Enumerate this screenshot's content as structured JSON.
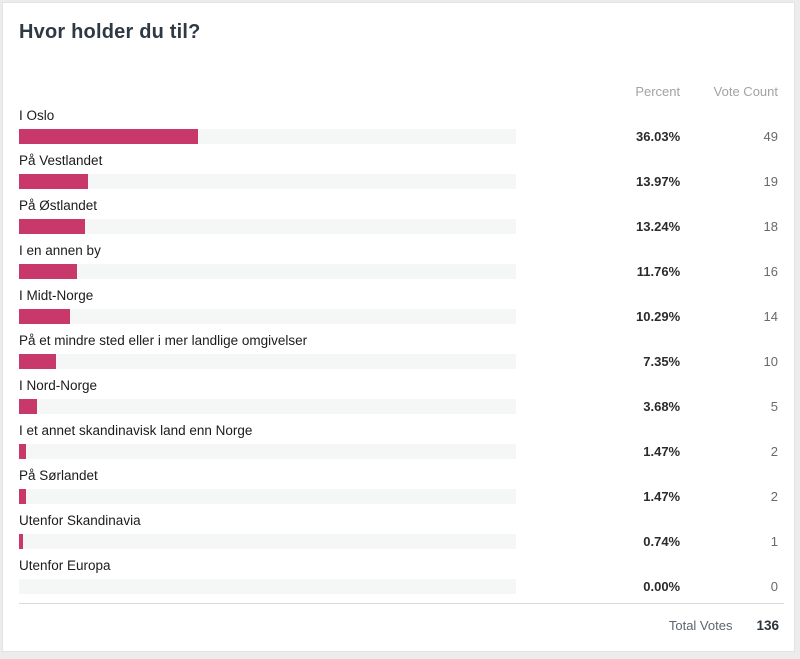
{
  "poll": {
    "title": "Hvor holder du til?",
    "columns": {
      "percent": "Percent",
      "vote_count": "Vote Count"
    },
    "total_label": "Total Votes",
    "total_votes": "136",
    "colors": {
      "bar": "#c9386b",
      "track": "#f5f6f6"
    },
    "options": [
      {
        "label": "I Oslo",
        "percent": "36.03%",
        "votes": "49",
        "width_pct": 36.03
      },
      {
        "label": "På Vestlandet",
        "percent": "13.97%",
        "votes": "19",
        "width_pct": 13.97
      },
      {
        "label": "På Østlandet",
        "percent": "13.24%",
        "votes": "18",
        "width_pct": 13.24
      },
      {
        "label": "I en annen by",
        "percent": "11.76%",
        "votes": "16",
        "width_pct": 11.76
      },
      {
        "label": "I Midt-Norge",
        "percent": "10.29%",
        "votes": "14",
        "width_pct": 10.29
      },
      {
        "label": "På et mindre sted eller i mer landlige omgivelser",
        "percent": "7.35%",
        "votes": "10",
        "width_pct": 7.35
      },
      {
        "label": "I Nord-Norge",
        "percent": "3.68%",
        "votes": "5",
        "width_pct": 3.68
      },
      {
        "label": "I et annet skandinavisk land enn Norge",
        "percent": "1.47%",
        "votes": "2",
        "width_pct": 1.47
      },
      {
        "label": "På Sørlandet",
        "percent": "1.47%",
        "votes": "2",
        "width_pct": 1.47
      },
      {
        "label": "Utenfor Skandinavia",
        "percent": "0.74%",
        "votes": "1",
        "width_pct": 0.74
      },
      {
        "label": "Utenfor Europa",
        "percent": "0.00%",
        "votes": "0",
        "width_pct": 0
      }
    ]
  },
  "chart_data": {
    "type": "bar",
    "orientation": "horizontal",
    "title": "Hvor holder du til?",
    "categories": [
      "I Oslo",
      "På Vestlandet",
      "På Østlandet",
      "I en annen by",
      "I Midt-Norge",
      "På et mindre sted eller i mer landlige omgivelser",
      "I Nord-Norge",
      "I et annet skandinavisk land enn Norge",
      "På Sørlandet",
      "Utenfor Skandinavia",
      "Utenfor Europa"
    ],
    "series": [
      {
        "name": "Percent",
        "values": [
          36.03,
          13.97,
          13.24,
          11.76,
          10.29,
          7.35,
          3.68,
          1.47,
          1.47,
          0.74,
          0.0
        ]
      },
      {
        "name": "Vote Count",
        "values": [
          49,
          19,
          18,
          16,
          14,
          10,
          5,
          2,
          2,
          1,
          0
        ]
      }
    ],
    "total_votes": 136,
    "xlim": [
      0,
      100
    ],
    "grid": false,
    "legend_position": "none",
    "bar_color": "#c9386b"
  }
}
